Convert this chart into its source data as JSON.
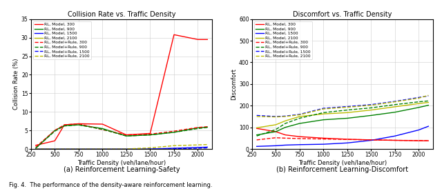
{
  "x": [
    300,
    500,
    600,
    750,
    1000,
    1250,
    1500,
    1750,
    2000,
    2100
  ],
  "collision": {
    "RL_Model_300": [
      1.0,
      2.2,
      6.5,
      6.8,
      6.7,
      3.8,
      4.2,
      30.8,
      29.5,
      29.5
    ],
    "RL_Model_900": [
      0.2,
      5.0,
      6.3,
      6.5,
      5.5,
      3.5,
      3.8,
      4.5,
      5.7,
      5.9
    ],
    "RL_Model_1500": [
      0.0,
      0.0,
      0.0,
      0.0,
      0.0,
      0.0,
      0.0,
      0.2,
      0.4,
      0.5
    ],
    "RL_Model_2100": [
      0.0,
      0.0,
      0.0,
      0.0,
      0.0,
      0.0,
      0.0,
      0.0,
      0.0,
      0.0
    ],
    "RL_ModelRule_300": [
      0.5,
      5.0,
      6.5,
      6.8,
      5.2,
      3.8,
      4.0,
      4.8,
      5.8,
      6.0
    ],
    "RL_ModelRule_900": [
      0.2,
      4.8,
      6.2,
      6.5,
      5.3,
      3.5,
      3.8,
      4.5,
      5.5,
      5.8
    ],
    "RL_ModelRule_1500": [
      0.0,
      0.0,
      0.0,
      0.0,
      0.0,
      0.0,
      0.0,
      0.1,
      0.2,
      0.3
    ],
    "RL_ModelRule_2100": [
      0.0,
      0.0,
      0.0,
      0.0,
      0.0,
      0.0,
      0.3,
      0.9,
      1.1,
      1.2
    ]
  },
  "discomfort": {
    "RL_Model_300": [
      95,
      80,
      65,
      57,
      50,
      45,
      42,
      40,
      38,
      38
    ],
    "RL_Model_900": [
      65,
      80,
      100,
      118,
      135,
      142,
      155,
      170,
      192,
      202
    ],
    "RL_Model_1500": [
      12,
      15,
      18,
      20,
      22,
      28,
      40,
      60,
      88,
      105
    ],
    "RL_Model_2100": [
      98,
      112,
      130,
      150,
      162,
      168,
      180,
      195,
      210,
      215
    ],
    "RL_ModelRule_300": [
      42,
      52,
      50,
      48,
      46,
      44,
      42,
      40,
      39,
      38
    ],
    "RL_ModelRule_900": [
      60,
      90,
      118,
      142,
      168,
      180,
      190,
      205,
      218,
      222
    ],
    "RL_ModelRule_1500": [
      155,
      150,
      152,
      160,
      188,
      196,
      205,
      220,
      238,
      245
    ],
    "RL_ModelRule_2100": [
      150,
      148,
      150,
      158,
      185,
      193,
      202,
      218,
      235,
      248
    ]
  },
  "colors": {
    "300": "#ff0000",
    "900": "#008000",
    "1500": "#0000ff",
    "2100": "#bbbb00"
  },
  "title_left": "Collision Rate vs. Traffic Density",
  "title_right": "Discomfort vs. Traffic Density",
  "xlabel": "Traffic Density (veh/lane/hour)",
  "ylabel_left": "Collision Rate (%)",
  "ylabel_right": "Discomfort",
  "caption_left": "(a) Reinforcement Learning-Safety",
  "caption_right": "(b) Reinforcement Learning-Discomfort",
  "fig_caption": "Fig. 4.  The performance of the density-aware reinforcement learning.",
  "ylim_left": [
    0,
    35
  ],
  "ylim_right": [
    0,
    600
  ],
  "yticks_left": [
    0,
    5,
    10,
    15,
    20,
    25,
    30,
    35
  ],
  "yticks_right": [
    0,
    100,
    200,
    300,
    400,
    500,
    600
  ],
  "xlim": [
    250,
    2150
  ],
  "xticks": [
    250,
    500,
    750,
    1000,
    1250,
    1500,
    1750,
    2000
  ]
}
